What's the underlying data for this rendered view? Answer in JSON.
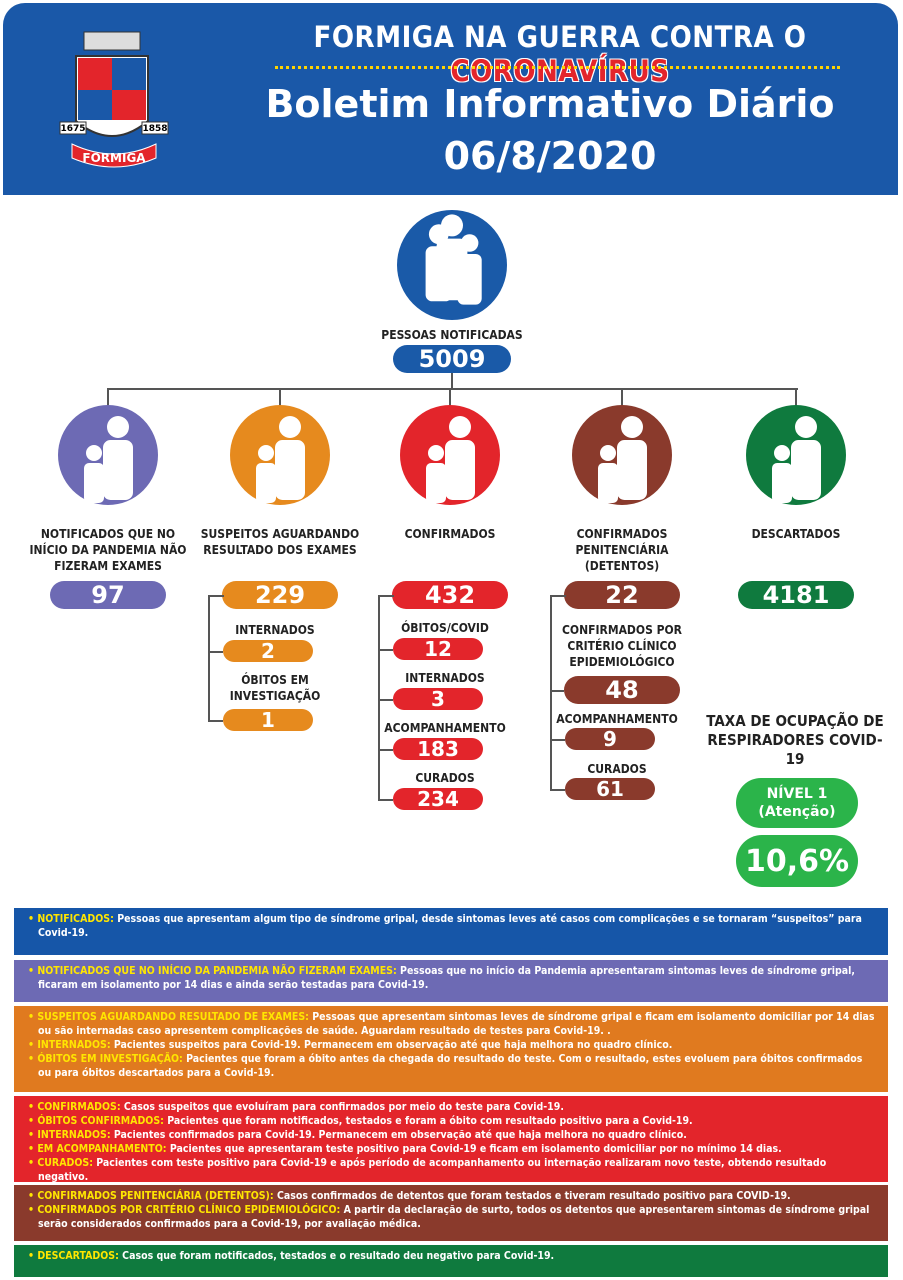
{
  "header": {
    "title_a": "FORMIGA NA GUERRA CONTRA O",
    "title_b": "CORONAVÍRUS",
    "subtitle": "Boletim Informativo Diário",
    "date": "06/8/2020",
    "logo": {
      "name": "FORMIGA",
      "year_left": "1675",
      "year_right": "1858"
    }
  },
  "main": {
    "label": "PESSOAS NOTIFICADAS",
    "value": 5009,
    "color": "#1a5aa8"
  },
  "groups": [
    {
      "label": "NOTIFICADOS QUE NO INÍCIO DA PANDEMIA NÃO FIZERAM EXAMES",
      "value": 97,
      "color": "#6d6ab4",
      "items": []
    },
    {
      "label": "SUSPEITOS AGUARDANDO RESULTADO DOS EXAMES",
      "value": 229,
      "color": "#e68a1e",
      "items": [
        {
          "label": "INTERNADOS",
          "value": 2
        },
        {
          "label": "ÓBITOS EM INVESTIGAÇÃO",
          "value": 1
        }
      ]
    },
    {
      "label": "CONFIRMADOS",
      "value": 432,
      "color": "#e3252b",
      "items": [
        {
          "label": "ÓBITOS/COVID",
          "value": 12
        },
        {
          "label": "INTERNADOS",
          "value": 3
        },
        {
          "label": "ACOMPANHAMENTO",
          "value": 183
        },
        {
          "label": "CURADOS",
          "value": 234
        }
      ]
    },
    {
      "label": "CONFIRMADOS PENITENCIÁRIA (DETENTOS)",
      "value": 22,
      "color": "#8a3a2c",
      "items": [
        {
          "label": "CONFIRMADOS POR CRITÉRIO CLÍNICO EPIDEMIOLÓGICO",
          "value": 48
        },
        {
          "label": "ACOMPANHAMENTO",
          "value": 9
        },
        {
          "label": "CURADOS",
          "value": 61
        }
      ]
    },
    {
      "label": "DESCARTADOS",
      "value": 4181,
      "color": "#0f7a3e",
      "items": []
    }
  ],
  "respirators": {
    "title": "TAXA DE OCUPAÇÃO DE RESPIRADORES COVID-19",
    "level": "NÍVEL 1",
    "level_note": "(Atenção)",
    "value": "10,6%",
    "color": "#2bb44a"
  },
  "legend": [
    {
      "color": "#1656a8",
      "entries": [
        {
          "term": "NOTIFICADOS:",
          "text": "Pessoas que apresentam algum tipo de síndrome gripal, desde sintomas leves até casos com complicações e se tornaram “suspeitos” para Covid-19."
        }
      ]
    },
    {
      "color": "#6d6ab4",
      "entries": [
        {
          "term": "NOTIFICADOS QUE NO INÍCIO DA PANDEMIA NÃO FIZERAM EXAMES:",
          "text": "Pessoas que no início da Pandemia apresentaram sintomas leves de síndrome gripal, ficaram em isolamento por 14 dias e ainda serão testadas para Covid-19."
        }
      ]
    },
    {
      "color": "#e07a1f",
      "entries": [
        {
          "term": "SUSPEITOS AGUARDANDO RESULTADO DE EXAMES:",
          "text": "Pessoas que apresentam sintomas leves de síndrome gripal e ficam em isolamento domiciliar por 14 dias ou são internadas caso apresentem complicações de saúde. Aguardam resultado de testes para Covid-19. ."
        },
        {
          "term": "INTERNADOS:",
          "text": "Pacientes suspeitos para Covid-19. Permanecem em observação até que haja melhora no quadro clínico."
        },
        {
          "term": "ÓBITOS EM INVESTIGAÇÃO:",
          "text": "Pacientes que foram a óbito antes da chegada do resultado do teste. Com o resultado, estes evoluem para óbitos confirmados ou para óbitos descartados para a Covid-19."
        }
      ]
    },
    {
      "color": "#e3252b",
      "entries": [
        {
          "term": "CONFIRMADOS:",
          "text": "Casos suspeitos que evoluíram para confirmados por meio do teste para Covid-19."
        },
        {
          "term": "ÓBITOS CONFIRMADOS:",
          "text": "Pacientes que foram notificados, testados e foram a óbito com resultado positivo para a Covid-19."
        },
        {
          "term": "INTERNADOS:",
          "text": "Pacientes confirmados para Covid-19. Permanecem em observação até que haja melhora no quadro clínico."
        },
        {
          "term": "EM ACOMPANHAMENTO:",
          "text": "Pacientes que apresentaram teste positivo para Covid-19 e ficam em isolamento domiciliar por no mínimo 14 dias."
        },
        {
          "term": "CURADOS:",
          "text": "Pacientes com teste positivo para Covid-19 e após período de acompanhamento ou internação realizaram novo teste, obtendo resultado negativo."
        }
      ]
    },
    {
      "color": "#8a3a2c",
      "entries": [
        {
          "term": "CONFIRMADOS PENITENCIÁRIA (DETENTOS):",
          "text": "Casos confirmados de detentos que foram testados e tiveram resultado positivo para COVID-19."
        },
        {
          "term": "CONFIRMADOS POR CRITÉRIO CLÍNICO EPIDEMIOLÓGICO:",
          "text": "A partir da declaração de surto, todos os detentos que apresentarem sintomas de síndrome gripal serão considerados confirmados para a Covid-19, por avaliação médica."
        }
      ]
    },
    {
      "color": "#0f7a3e",
      "entries": [
        {
          "term": "DESCARTADOS:",
          "text": "Casos que foram notificados, testados e o resultado deu negativo para Covid-19."
        }
      ]
    }
  ]
}
